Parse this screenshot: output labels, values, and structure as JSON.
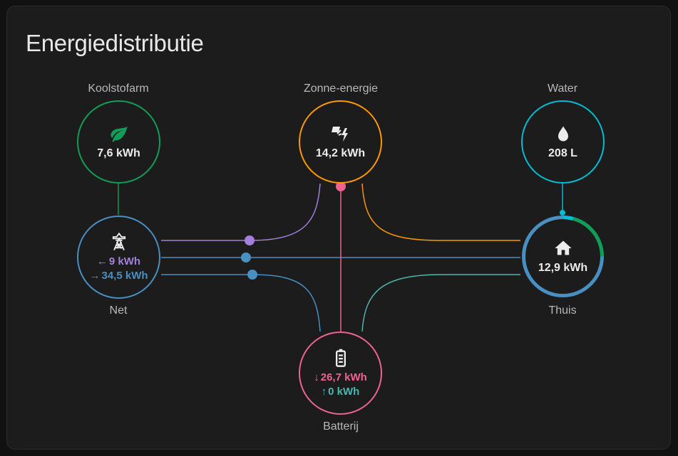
{
  "card": {
    "title": "Energiedistributie"
  },
  "nodes": {
    "carbon": {
      "label": "Koolstofarm",
      "value": "7,6 kWh",
      "icon": "leaf-icon",
      "color": "#0f9d58"
    },
    "solar": {
      "label": "Zonne-energie",
      "value": "14,2 kWh",
      "icon": "solar-power-icon",
      "color": "#ff9800"
    },
    "water": {
      "label": "Water",
      "value": "208 L",
      "icon": "water-drop-icon",
      "color": "#00bcd4"
    },
    "grid": {
      "label": "Net",
      "consumption": "9 kWh",
      "return": "34,5 kWh",
      "icon": "transmission-tower-icon",
      "color": "#488fc2",
      "consumption_color": "#a280db"
    },
    "home": {
      "label": "Thuis",
      "value": "12,9 kWh",
      "icon": "home-icon",
      "color": "#488fc2"
    },
    "battery": {
      "label": "Batterij",
      "charge_out": "26,7 kWh",
      "charge_in": "0 kWh",
      "icon": "battery-icon",
      "color": "#f06292",
      "charge_in_color": "#4db6ac"
    }
  },
  "arrows": {
    "left": "←",
    "right": "→",
    "down": "↓",
    "up": "↑"
  }
}
